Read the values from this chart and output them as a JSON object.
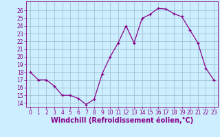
{
  "x": [
    0,
    1,
    2,
    3,
    4,
    5,
    6,
    7,
    8,
    9,
    10,
    11,
    12,
    13,
    14,
    15,
    16,
    17,
    18,
    19,
    20,
    21,
    22,
    23
  ],
  "y": [
    18,
    17,
    17,
    16.2,
    15,
    15,
    14.6,
    13.8,
    14.5,
    17.8,
    20,
    21.8,
    24,
    21.8,
    25,
    25.5,
    26.3,
    26.2,
    25.6,
    25.2,
    23.5,
    21.8,
    18.5,
    17
  ],
  "line_color": "#880088",
  "marker": "+",
  "marker_size": 3,
  "marker_linewidth": 0.9,
  "xlabel": "Windchill (Refroidissement éolien,°C)",
  "xlim": [
    -0.5,
    23.5
  ],
  "ylim": [
    13.5,
    27.2
  ],
  "yticks": [
    14,
    15,
    16,
    17,
    18,
    19,
    20,
    21,
    22,
    23,
    24,
    25,
    26
  ],
  "xticks": [
    0,
    1,
    2,
    3,
    4,
    5,
    6,
    7,
    8,
    9,
    10,
    11,
    12,
    13,
    14,
    15,
    16,
    17,
    18,
    19,
    20,
    21,
    22,
    23
  ],
  "bg_color": "#cceeff",
  "grid_color": "#99bbcc",
  "tick_label_fontsize": 5.5,
  "xlabel_fontsize": 7,
  "line_width": 0.9
}
